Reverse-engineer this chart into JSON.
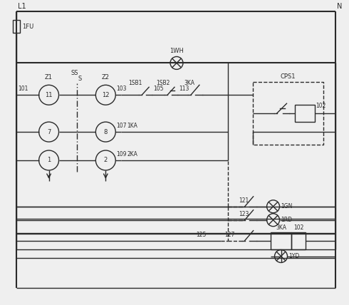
{
  "bg_color": "#efefef",
  "line_color": "#2a2a2a",
  "dashed_color": "#2a2a2a",
  "L1_label": "L1",
  "N_label": "N",
  "fuse_label": "1FU",
  "lamp_top_label": "1WH",
  "cps1_label": "CPS1",
  "figsize": [
    4.9,
    4.28
  ],
  "dpi": 100
}
